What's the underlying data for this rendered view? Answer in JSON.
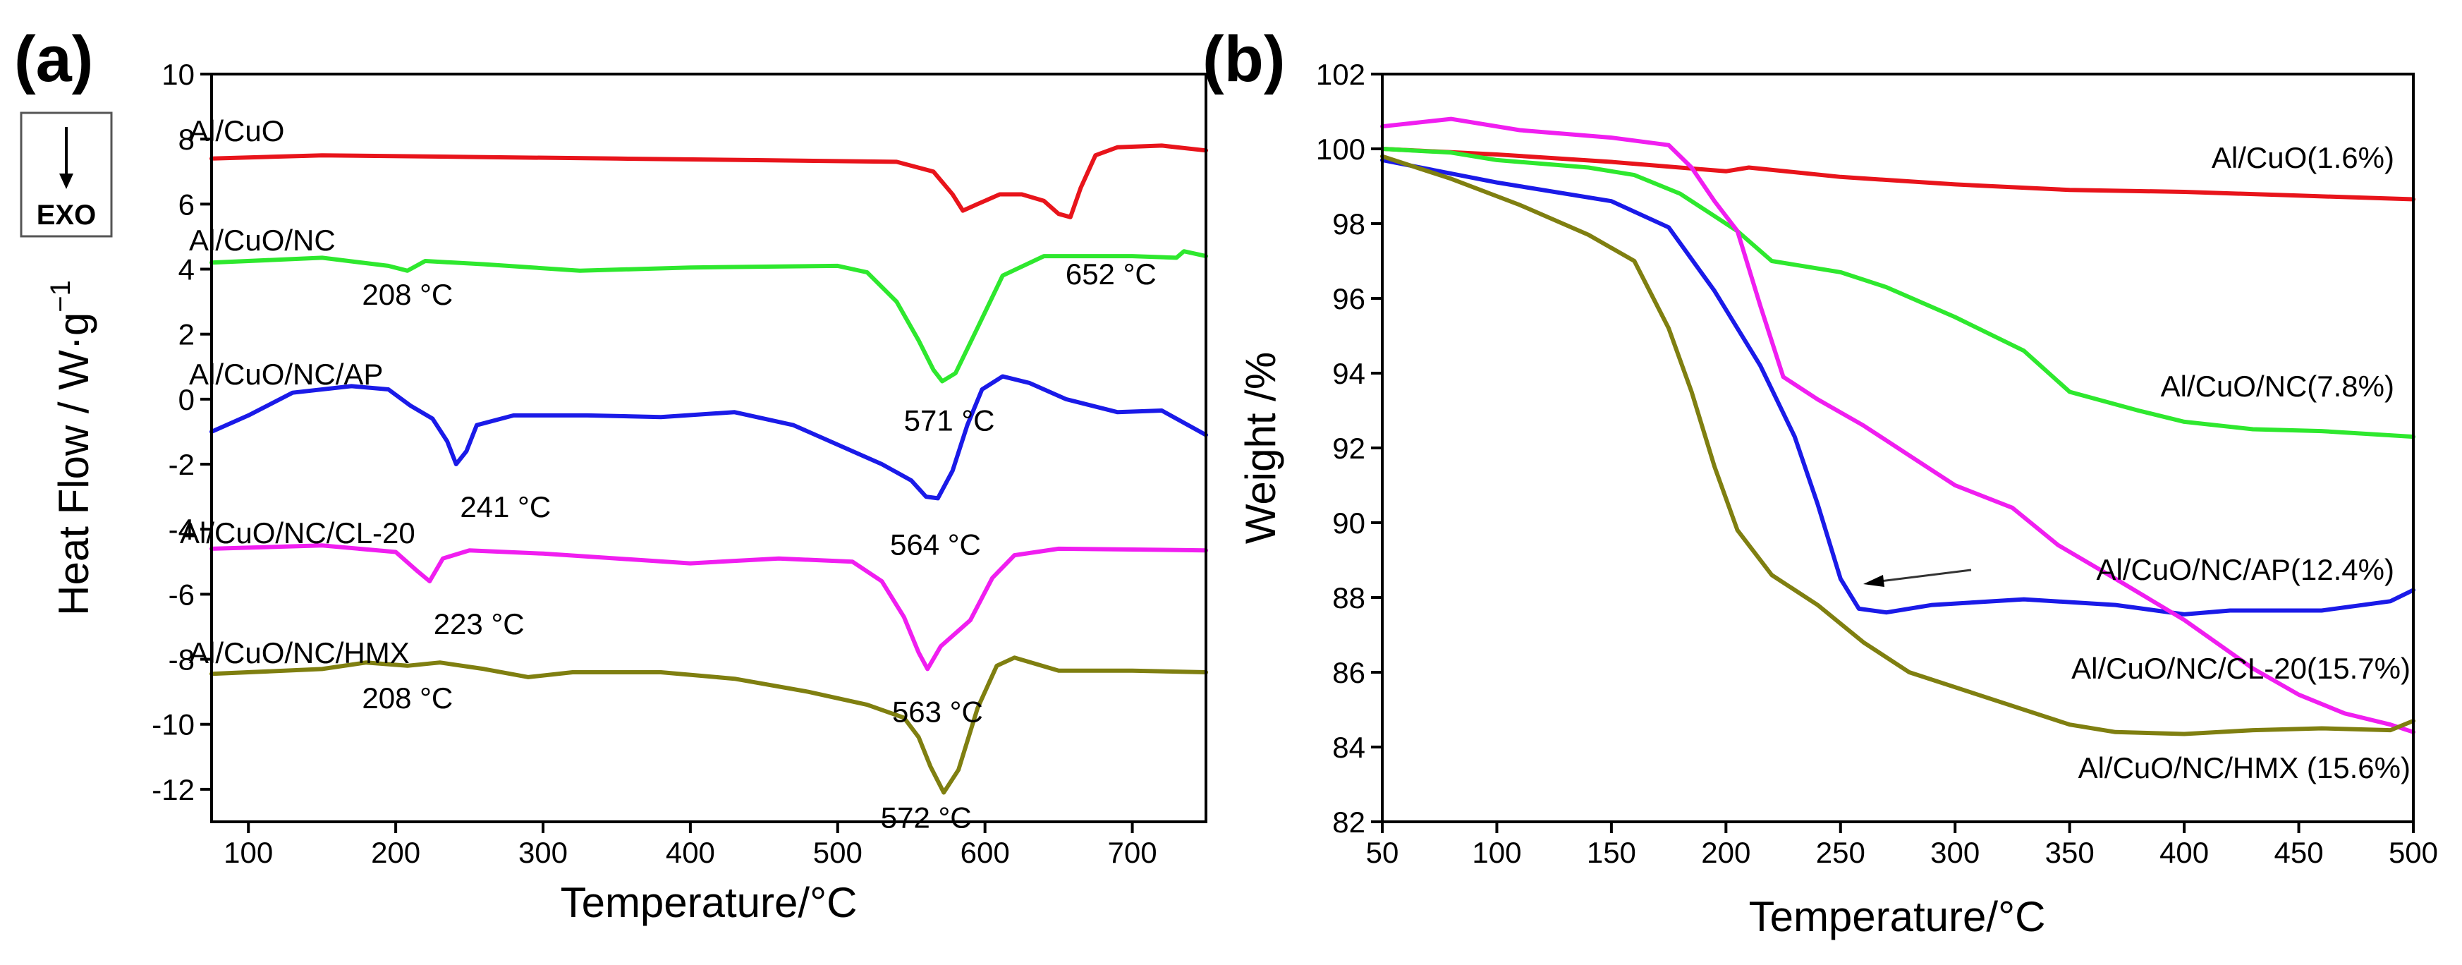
{
  "chart_data": [
    {
      "type": "line",
      "panel_label": "(a)",
      "title": "",
      "xlabel": "Temperature/°C",
      "ylabel": "Heat Flow / W·g",
      "ylabel_superscript": "−1",
      "xlim": [
        75,
        750
      ],
      "ylim": [
        -13,
        10
      ],
      "xticks": [
        100,
        200,
        300,
        400,
        500,
        600,
        700
      ],
      "xtick_labels": [
        "100",
        "200",
        "300",
        "400",
        "500",
        "600",
        "700"
      ],
      "yticks": [
        -12,
        -10,
        -8,
        -6,
        -4,
        -2,
        0,
        2,
        4,
        6,
        8,
        10
      ],
      "ytick_labels": [
        "-12",
        "-10",
        "-8",
        "-6",
        "-4",
        "-2",
        "0",
        "2",
        "4",
        "6",
        "8",
        "10"
      ],
      "grid": false,
      "exo_label": "EXO",
      "series": [
        {
          "name": "Al/CuO",
          "color": "#e8141b",
          "points": [
            [
              75,
              7.4
            ],
            [
              150,
              7.5
            ],
            [
              250,
              7.45
            ],
            [
              350,
              7.4
            ],
            [
              450,
              7.35
            ],
            [
              540,
              7.3
            ],
            [
              565,
              7.0
            ],
            [
              578,
              6.3
            ],
            [
              585,
              5.8
            ],
            [
              595,
              6.0
            ],
            [
              610,
              6.3
            ],
            [
              625,
              6.3
            ],
            [
              640,
              6.1
            ],
            [
              650,
              5.7
            ],
            [
              658,
              5.6
            ],
            [
              665,
              6.5
            ],
            [
              675,
              7.5
            ],
            [
              690,
              7.75
            ],
            [
              720,
              7.8
            ],
            [
              750,
              7.65
            ]
          ],
          "annotations": [
            {
              "text": "652 °C",
              "x": 652,
              "y": 5.6
            }
          ]
        },
        {
          "name": "Al/CuO/NC",
          "color": "#2ee82e",
          "points": [
            [
              75,
              4.2
            ],
            [
              150,
              4.35
            ],
            [
              195,
              4.1
            ],
            [
              208,
              3.95
            ],
            [
              220,
              4.25
            ],
            [
              260,
              4.15
            ],
            [
              325,
              3.95
            ],
            [
              400,
              4.05
            ],
            [
              500,
              4.1
            ],
            [
              520,
              3.9
            ],
            [
              540,
              3.0
            ],
            [
              555,
              1.8
            ],
            [
              565,
              0.9
            ],
            [
              571,
              0.55
            ],
            [
              580,
              0.8
            ],
            [
              595,
              2.2
            ],
            [
              612,
              3.8
            ],
            [
              640,
              4.4
            ],
            [
              700,
              4.4
            ],
            [
              730,
              4.35
            ],
            [
              735,
              4.55
            ],
            [
              750,
              4.4
            ]
          ],
          "annotations": [
            {
              "text": "208 °C",
              "x": 208,
              "y": 3.95
            },
            {
              "text": "571 °C",
              "x": 571,
              "y": 0.55
            }
          ]
        },
        {
          "name": "Al/CuO/NC/AP",
          "color": "#1a1ae8",
          "points": [
            [
              75,
              -1.0
            ],
            [
              100,
              -0.5
            ],
            [
              130,
              0.2
            ],
            [
              170,
              0.4
            ],
            [
              195,
              0.3
            ],
            [
              210,
              -0.2
            ],
            [
              225,
              -0.6
            ],
            [
              235,
              -1.3
            ],
            [
              241,
              -2.0
            ],
            [
              248,
              -1.6
            ],
            [
              255,
              -0.8
            ],
            [
              280,
              -0.5
            ],
            [
              330,
              -0.5
            ],
            [
              380,
              -0.55
            ],
            [
              430,
              -0.4
            ],
            [
              470,
              -0.8
            ],
            [
              510,
              -1.6
            ],
            [
              530,
              -2.0
            ],
            [
              550,
              -2.5
            ],
            [
              560,
              -3.0
            ],
            [
              568,
              -3.05
            ],
            [
              578,
              -2.2
            ],
            [
              588,
              -0.8
            ],
            [
              598,
              0.3
            ],
            [
              612,
              0.7
            ],
            [
              630,
              0.5
            ],
            [
              655,
              0.0
            ],
            [
              690,
              -0.4
            ],
            [
              720,
              -0.35
            ],
            [
              750,
              -1.1
            ]
          ],
          "annotations": [
            {
              "text": "241 °C",
              "x": 241,
              "y": -2.0
            },
            {
              "text": "564 °C",
              "x": 564,
              "y": -3.05
            }
          ]
        },
        {
          "name": "Al/CuO/NC/CL-20",
          "color": "#f01ef0",
          "points": [
            [
              75,
              -4.6
            ],
            [
              150,
              -4.5
            ],
            [
              200,
              -4.7
            ],
            [
              215,
              -5.3
            ],
            [
              223,
              -5.6
            ],
            [
              232,
              -4.9
            ],
            [
              250,
              -4.65
            ],
            [
              300,
              -4.75
            ],
            [
              400,
              -5.05
            ],
            [
              460,
              -4.9
            ],
            [
              510,
              -5.0
            ],
            [
              530,
              -5.6
            ],
            [
              545,
              -6.7
            ],
            [
              555,
              -7.8
            ],
            [
              561,
              -8.3
            ],
            [
              570,
              -7.6
            ],
            [
              590,
              -6.8
            ],
            [
              605,
              -5.5
            ],
            [
              620,
              -4.8
            ],
            [
              650,
              -4.6
            ],
            [
              750,
              -4.65
            ]
          ],
          "annotations": [
            {
              "text": "223 °C",
              "x": 223,
              "y": -5.6
            },
            {
              "text": "563 °C",
              "x": 563,
              "y": -8.3
            }
          ]
        },
        {
          "name": "Al/CuO/NC/HMX",
          "color": "#7f7f10",
          "points": [
            [
              75,
              -8.45
            ],
            [
              150,
              -8.3
            ],
            [
              180,
              -8.1
            ],
            [
              208,
              -8.2
            ],
            [
              230,
              -8.1
            ],
            [
              260,
              -8.3
            ],
            [
              290,
              -8.55
            ],
            [
              320,
              -8.4
            ],
            [
              380,
              -8.4
            ],
            [
              430,
              -8.6
            ],
            [
              480,
              -9.0
            ],
            [
              520,
              -9.4
            ],
            [
              545,
              -9.8
            ],
            [
              555,
              -10.4
            ],
            [
              563,
              -11.3
            ],
            [
              572,
              -12.1
            ],
            [
              582,
              -11.4
            ],
            [
              595,
              -9.5
            ],
            [
              608,
              -8.2
            ],
            [
              620,
              -7.95
            ],
            [
              650,
              -8.35
            ],
            [
              700,
              -8.35
            ],
            [
              750,
              -8.4
            ]
          ],
          "annotations": [
            {
              "text": "208 °C",
              "x": 208,
              "y": -8.2
            },
            {
              "text": "572 °C",
              "x": 572,
              "y": -12.1
            }
          ]
        }
      ]
    },
    {
      "type": "line",
      "panel_label": "(b)",
      "title": "",
      "xlabel": "Temperature/°C",
      "ylabel": "Weight /%",
      "xlim": [
        50,
        500
      ],
      "ylim": [
        82,
        102
      ],
      "xticks": [
        50,
        100,
        150,
        200,
        250,
        300,
        350,
        400,
        450,
        500
      ],
      "xtick_labels": [
        "50",
        "100",
        "150",
        "200",
        "250",
        "300",
        "350",
        "400",
        "450",
        "500"
      ],
      "yticks": [
        82,
        84,
        86,
        88,
        90,
        92,
        94,
        96,
        98,
        100,
        102
      ],
      "ytick_labels": [
        "82",
        "84",
        "86",
        "88",
        "90",
        "92",
        "94",
        "96",
        "98",
        "100",
        "102"
      ],
      "grid": false,
      "series": [
        {
          "name": "Al/CuO(1.6%)",
          "color": "#e8141b",
          "points": [
            [
              50,
              100.0
            ],
            [
              100,
              99.85
            ],
            [
              150,
              99.65
            ],
            [
              200,
              99.4
            ],
            [
              210,
              99.5
            ],
            [
              250,
              99.25
            ],
            [
              300,
              99.05
            ],
            [
              350,
              98.9
            ],
            [
              400,
              98.85
            ],
            [
              450,
              98.75
            ],
            [
              500,
              98.65
            ]
          ]
        },
        {
          "name": "Al/CuO/NC(7.8%)",
          "color": "#2ee82e",
          "points": [
            [
              50,
              100.0
            ],
            [
              80,
              99.9
            ],
            [
              100,
              99.7
            ],
            [
              140,
              99.5
            ],
            [
              160,
              99.3
            ],
            [
              180,
              98.8
            ],
            [
              195,
              98.2
            ],
            [
              205,
              97.8
            ],
            [
              220,
              97.0
            ],
            [
              250,
              96.7
            ],
            [
              270,
              96.3
            ],
            [
              300,
              95.5
            ],
            [
              330,
              94.6
            ],
            [
              350,
              93.5
            ],
            [
              380,
              93.0
            ],
            [
              400,
              92.7
            ],
            [
              430,
              92.5
            ],
            [
              460,
              92.45
            ],
            [
              500,
              92.3
            ]
          ]
        },
        {
          "name": "Al/CuO/NC/AP(12.4%)",
          "color": "#1a1ae8",
          "points": [
            [
              50,
              99.7
            ],
            [
              100,
              99.1
            ],
            [
              150,
              98.6
            ],
            [
              175,
              97.9
            ],
            [
              195,
              96.2
            ],
            [
              215,
              94.2
            ],
            [
              230,
              92.3
            ],
            [
              240,
              90.5
            ],
            [
              250,
              88.5
            ],
            [
              258,
              87.7
            ],
            [
              270,
              87.6
            ],
            [
              290,
              87.8
            ],
            [
              330,
              87.95
            ],
            [
              370,
              87.8
            ],
            [
              400,
              87.55
            ],
            [
              420,
              87.65
            ],
            [
              460,
              87.65
            ],
            [
              490,
              87.9
            ],
            [
              500,
              88.2
            ]
          ]
        },
        {
          "name": "Al/CuO/NC/CL-20(15.7%)",
          "color": "#f01ef0",
          "points": [
            [
              50,
              100.6
            ],
            [
              80,
              100.8
            ],
            [
              110,
              100.5
            ],
            [
              150,
              100.3
            ],
            [
              175,
              100.1
            ],
            [
              185,
              99.5
            ],
            [
              195,
              98.6
            ],
            [
              205,
              97.8
            ],
            [
              215,
              95.8
            ],
            [
              225,
              93.9
            ],
            [
              240,
              93.3
            ],
            [
              260,
              92.6
            ],
            [
              280,
              91.8
            ],
            [
              300,
              91.0
            ],
            [
              325,
              90.4
            ],
            [
              345,
              89.4
            ],
            [
              370,
              88.5
            ],
            [
              400,
              87.4
            ],
            [
              430,
              86.1
            ],
            [
              450,
              85.4
            ],
            [
              470,
              84.9
            ],
            [
              490,
              84.6
            ],
            [
              500,
              84.4
            ]
          ]
        },
        {
          "name": "Al/CuO/NC/HMX (15.6%)",
          "color": "#7f7f10",
          "points": [
            [
              50,
              99.8
            ],
            [
              80,
              99.2
            ],
            [
              110,
              98.5
            ],
            [
              140,
              97.7
            ],
            [
              160,
              97.0
            ],
            [
              175,
              95.2
            ],
            [
              185,
              93.5
            ],
            [
              195,
              91.5
            ],
            [
              205,
              89.8
            ],
            [
              220,
              88.6
            ],
            [
              240,
              87.8
            ],
            [
              260,
              86.8
            ],
            [
              280,
              86.0
            ],
            [
              310,
              85.4
            ],
            [
              350,
              84.6
            ],
            [
              370,
              84.4
            ],
            [
              400,
              84.35
            ],
            [
              430,
              84.45
            ],
            [
              460,
              84.5
            ],
            [
              490,
              84.45
            ],
            [
              500,
              84.7
            ]
          ]
        }
      ],
      "annotations": [
        {
          "text": "Al/CuO/NC/AP(12.4%)",
          "arrow_to": [
            258,
            88.5
          ]
        }
      ]
    }
  ]
}
